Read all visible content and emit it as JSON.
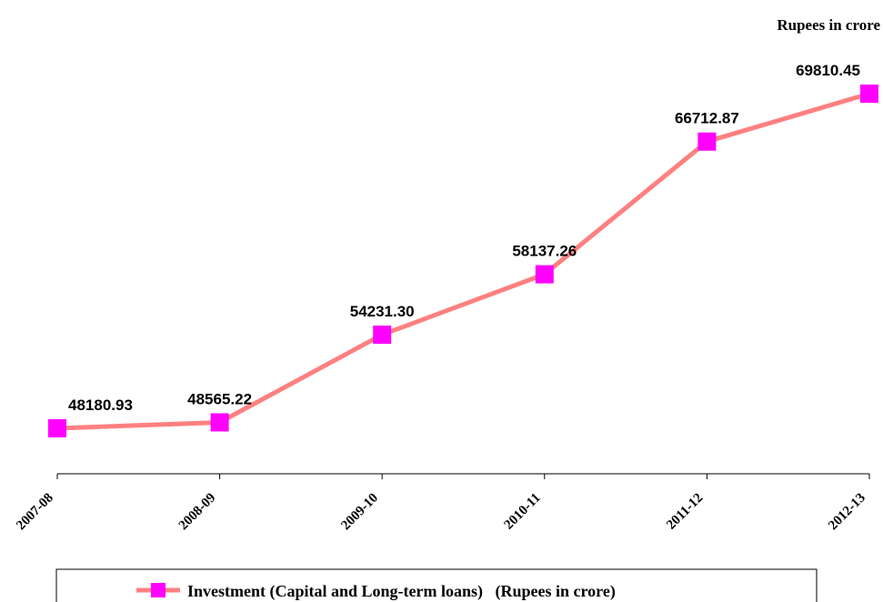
{
  "chart_data": {
    "type": "line",
    "unit_note": "Rupees in crore",
    "categories": [
      "2007-08",
      "2008-09",
      "2009-10",
      "2010-11",
      "2011-12",
      "2012-13"
    ],
    "series": [
      {
        "name": "Investment (Capital and Long-term loans)   (Rupees in crore)",
        "values": [
          48180.93,
          48565.22,
          54231.3,
          58137.26,
          66712.87,
          69810.45
        ],
        "labels": [
          "48180.93",
          "48565.22",
          "54231.30",
          "58137.26",
          "66712.87",
          "69810.45"
        ],
        "line_color": "#FF8080",
        "marker_color": "#FF00FF"
      }
    ],
    "ylim": [
      43000,
      70000
    ],
    "grid": false,
    "legend_position": "bottom"
  }
}
